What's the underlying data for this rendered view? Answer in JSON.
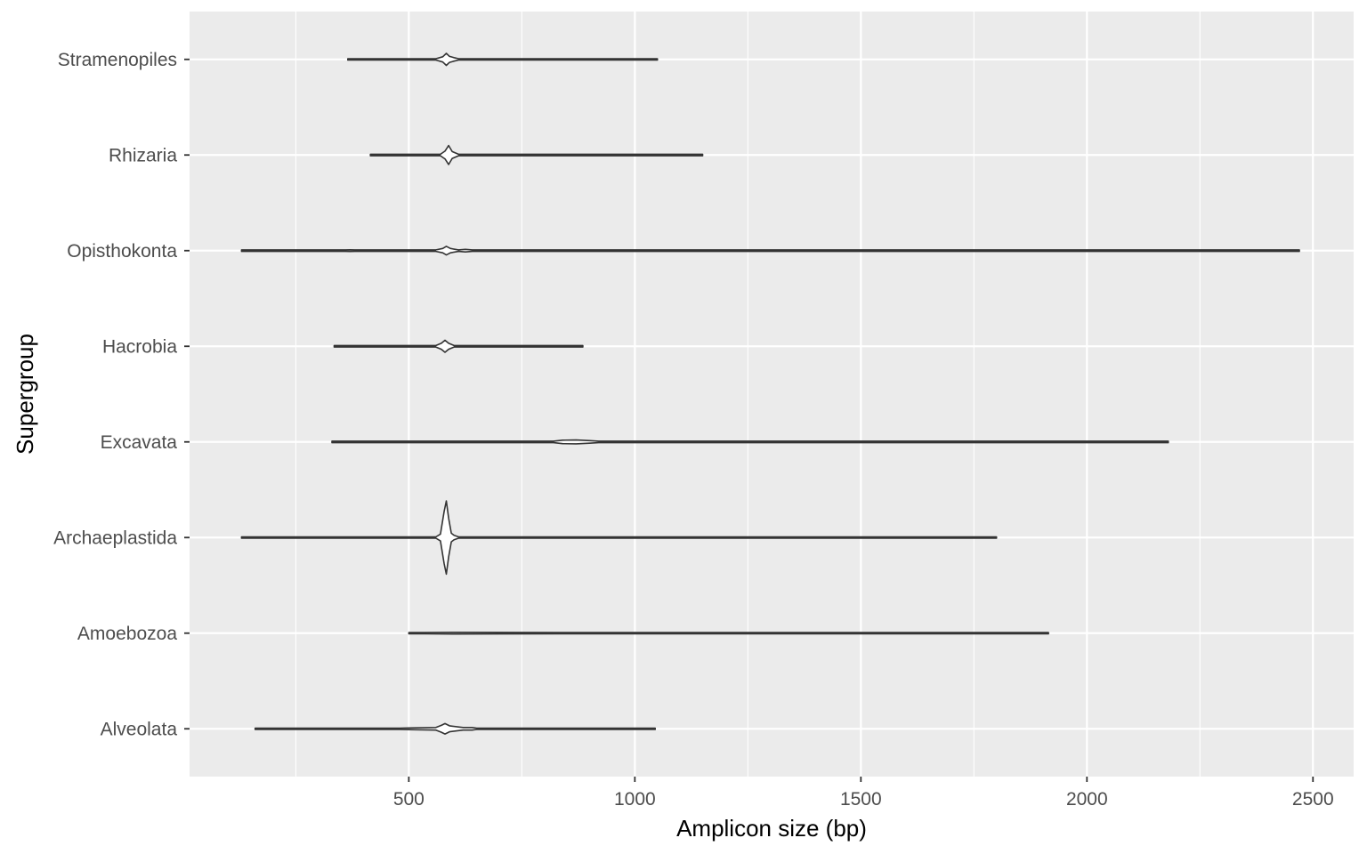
{
  "chart_data": {
    "type": "violin",
    "orientation": "horizontal",
    "xlabel": "Amplicon size (bp)",
    "ylabel": "Supergroup",
    "xlim": [
      15,
      2590
    ],
    "x_ticks": [
      500,
      1000,
      1500,
      2000,
      2500
    ],
    "grid": true,
    "colors": {
      "panel": "#ebebeb",
      "grid": "#ffffff",
      "violin_stroke": "#333333",
      "violin_fill": "#ffffff",
      "tick_text": "#4d4d4d"
    },
    "categories": [
      "Stramenopiles",
      "Rhizaria",
      "Opisthokonta",
      "Hacrobia",
      "Excavata",
      "Archaeplastida",
      "Amoebozoa",
      "Alveolata"
    ],
    "series": [
      {
        "category": "Stramenopiles",
        "min": 365,
        "max": 1050,
        "density": [
          [
            365,
            0.01
          ],
          [
            560,
            0.015
          ],
          [
            575,
            0.06
          ],
          [
            583,
            0.14
          ],
          [
            590,
            0.07
          ],
          [
            600,
            0.04
          ],
          [
            610,
            0.015
          ],
          [
            700,
            0.008
          ],
          [
            1050,
            0.004
          ]
        ]
      },
      {
        "category": "Rhizaria",
        "min": 415,
        "max": 1150,
        "density": [
          [
            415,
            0.01
          ],
          [
            570,
            0.015
          ],
          [
            580,
            0.09
          ],
          [
            588,
            0.22
          ],
          [
            596,
            0.08
          ],
          [
            610,
            0.015
          ],
          [
            800,
            0.008
          ],
          [
            1150,
            0.004
          ]
        ]
      },
      {
        "category": "Opisthokonta",
        "min": 130,
        "max": 2470,
        "density": [
          [
            130,
            0.006
          ],
          [
            360,
            0.01
          ],
          [
            370,
            0.02
          ],
          [
            380,
            0.01
          ],
          [
            560,
            0.012
          ],
          [
            575,
            0.05
          ],
          [
            583,
            0.1
          ],
          [
            592,
            0.05
          ],
          [
            610,
            0.015
          ],
          [
            625,
            0.03
          ],
          [
            640,
            0.01
          ],
          [
            1000,
            0.006
          ],
          [
            2470,
            0.003
          ]
        ]
      },
      {
        "category": "Hacrobia",
        "min": 335,
        "max": 885,
        "density": [
          [
            335,
            0.008
          ],
          [
            560,
            0.015
          ],
          [
            572,
            0.07
          ],
          [
            580,
            0.14
          ],
          [
            588,
            0.07
          ],
          [
            600,
            0.015
          ],
          [
            885,
            0.004
          ]
        ]
      },
      {
        "category": "Excavata",
        "min": 330,
        "max": 2180,
        "density": [
          [
            330,
            0.006
          ],
          [
            820,
            0.008
          ],
          [
            840,
            0.04
          ],
          [
            870,
            0.045
          ],
          [
            900,
            0.03
          ],
          [
            920,
            0.008
          ],
          [
            2180,
            0.003
          ]
        ]
      },
      {
        "category": "Archaeplastida",
        "min": 130,
        "max": 1800,
        "density": [
          [
            130,
            0.006
          ],
          [
            330,
            0.01
          ],
          [
            340,
            0.006
          ],
          [
            560,
            0.015
          ],
          [
            570,
            0.08
          ],
          [
            578,
            0.6
          ],
          [
            583,
            0.85
          ],
          [
            588,
            0.45
          ],
          [
            594,
            0.1
          ],
          [
            600,
            0.05
          ],
          [
            610,
            0.015
          ],
          [
            900,
            0.006
          ],
          [
            1800,
            0.003
          ]
        ]
      },
      {
        "category": "Amoebozoa",
        "min": 500,
        "max": 1915,
        "density": [
          [
            500,
            0.008
          ],
          [
            535,
            0.015
          ],
          [
            600,
            0.02
          ],
          [
            700,
            0.018
          ],
          [
            840,
            0.015
          ],
          [
            860,
            0.008
          ],
          [
            1915,
            0.004
          ]
        ]
      },
      {
        "category": "Alveolata",
        "min": 160,
        "max": 1045,
        "density": [
          [
            160,
            0.008
          ],
          [
            480,
            0.012
          ],
          [
            500,
            0.02
          ],
          [
            560,
            0.03
          ],
          [
            572,
            0.08
          ],
          [
            580,
            0.12
          ],
          [
            590,
            0.07
          ],
          [
            620,
            0.03
          ],
          [
            640,
            0.03
          ],
          [
            650,
            0.012
          ],
          [
            800,
            0.008
          ],
          [
            1045,
            0.004
          ]
        ]
      }
    ]
  }
}
